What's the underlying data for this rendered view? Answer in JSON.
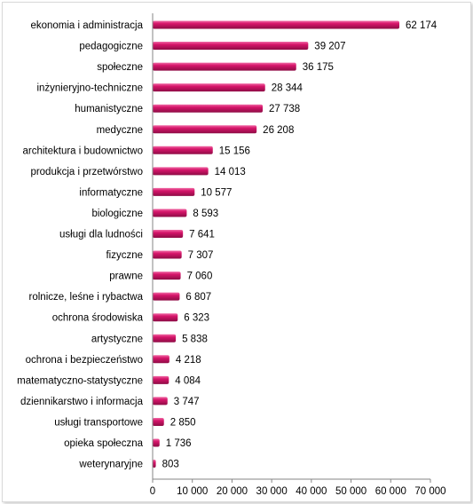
{
  "chart_data": {
    "type": "bar",
    "orientation": "horizontal",
    "categories": [
      "ekonomia i administracja",
      "pedagogiczne",
      "społeczne",
      "inżynieryjno-techniczne",
      "humanistyczne",
      "medyczne",
      "architektura i budownictwo",
      "produkcja i przetwórstwo",
      "informatyczne",
      "biologiczne",
      "usługi dla ludności",
      "fizyczne",
      "prawne",
      "rolnicze, leśne i rybactwa",
      "ochrona środowiska",
      "artystyczne",
      "ochrona i bezpieczeństwo",
      "matematyczno-statystyczne",
      "dziennikarstwo i informacja",
      "usługi transportowe",
      "opieka społeczna",
      "weterynaryjne"
    ],
    "values": [
      62174,
      39207,
      36175,
      28344,
      27738,
      26208,
      15156,
      14013,
      10577,
      8593,
      7641,
      7307,
      7060,
      6807,
      6323,
      5838,
      4218,
      4084,
      3747,
      2850,
      1736,
      803
    ],
    "value_labels": [
      "62 174",
      "39 207",
      "36 175",
      "28 344",
      "27 738",
      "26 208",
      "15 156",
      "14 013",
      "10 577",
      "8 593",
      "7 641",
      "7 307",
      "7 060",
      "6 807",
      "6 323",
      "5 838",
      "4 218",
      "4 084",
      "3 747",
      "2 850",
      "1 736",
      "803"
    ],
    "xlim": [
      0,
      70000
    ],
    "x_ticks": [
      0,
      10000,
      20000,
      30000,
      40000,
      50000,
      60000,
      70000
    ],
    "x_tick_labels": [
      "0",
      "10 000",
      "20 000",
      "30 000",
      "40 000",
      "50 000",
      "60 000",
      "70 000"
    ],
    "grid": false,
    "legend": "none",
    "bar_color": "#d6156a",
    "bar_highlight_color": "#f06aa5",
    "bar_shadow_color": "#8e0c45"
  }
}
